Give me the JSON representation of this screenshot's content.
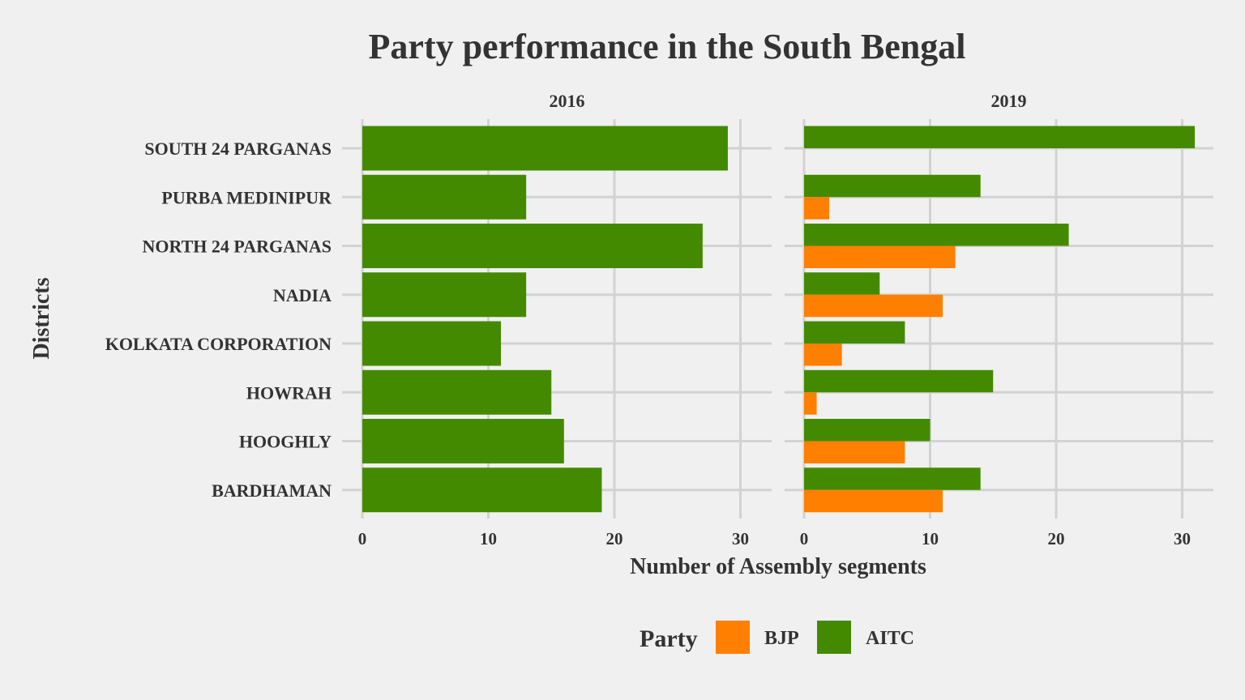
{
  "chart_data": {
    "type": "bar",
    "orientation": "horizontal",
    "title": "Party performance in the South Bengal",
    "xlabel": "Number of Assembly segments",
    "ylabel": "Districts",
    "xlim": [
      0,
      32
    ],
    "xticks": [
      0,
      10,
      20,
      30
    ],
    "grid": true,
    "legend": {
      "title": "Party",
      "placement": "bottom",
      "entries": [
        {
          "name": "BJP",
          "color": "#ff7f00"
        },
        {
          "name": "AITC",
          "color": "#438a00"
        }
      ]
    },
    "categories": [
      "SOUTH 24 PARGANAS",
      "PURBA MEDINIPUR",
      "NORTH 24 PARGANAS",
      "NADIA",
      "KOLKATA CORPORATION",
      "HOWRAH",
      "HOOGHLY",
      "BARDHAMAN"
    ],
    "facets": [
      {
        "label": "2016",
        "series": [
          {
            "name": "AITC",
            "values": [
              29,
              13,
              27,
              13,
              11,
              15,
              16,
              19
            ]
          }
        ]
      },
      {
        "label": "2019",
        "series": [
          {
            "name": "AITC",
            "values": [
              31,
              14,
              21,
              6,
              8,
              15,
              10,
              14
            ]
          },
          {
            "name": "BJP",
            "values": [
              0,
              2,
              12,
              11,
              3,
              1,
              8,
              11
            ]
          }
        ]
      }
    ]
  }
}
